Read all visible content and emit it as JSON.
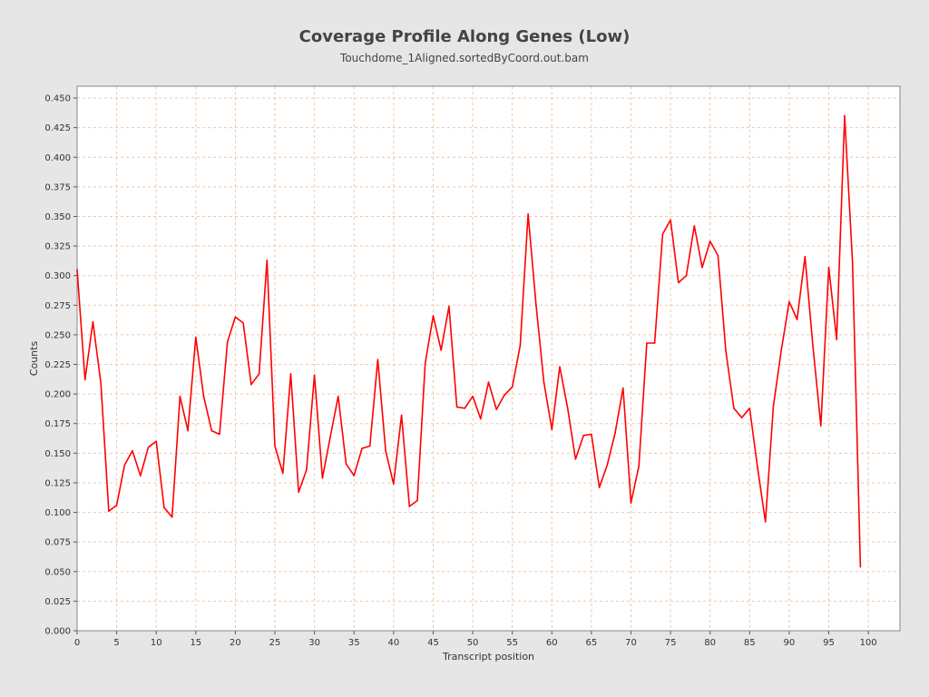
{
  "colors": {
    "background": "#e6e6e6",
    "plot_background": "#ffffff",
    "gridline": "#f0c8a8",
    "series": "#ff0000"
  },
  "chart_data": {
    "type": "line",
    "title": "Coverage Profile Along Genes (Low)",
    "subtitle": "Touchdome_1Aligned.sortedByCoord.out.bam",
    "xlabel": "Transcript position",
    "ylabel": "Counts",
    "xlim": [
      0,
      104
    ],
    "ylim": [
      0,
      0.46
    ],
    "grid": true,
    "legend": "none",
    "x_ticks": [
      "0",
      "5",
      "10",
      "15",
      "20",
      "25",
      "30",
      "35",
      "40",
      "45",
      "50",
      "55",
      "60",
      "65",
      "70",
      "75",
      "80",
      "85",
      "90",
      "95",
      "100"
    ],
    "y_ticks": [
      "0.000",
      "0.025",
      "0.050",
      "0.075",
      "0.100",
      "0.125",
      "0.150",
      "0.175",
      "0.200",
      "0.225",
      "0.250",
      "0.275",
      "0.300",
      "0.325",
      "0.350",
      "0.375",
      "0.400",
      "0.425",
      "0.450"
    ],
    "series": [
      {
        "x": [
          0,
          1,
          2,
          3,
          4,
          5,
          6,
          7,
          8,
          9,
          10,
          11,
          12,
          13,
          14,
          15,
          16,
          17,
          18,
          19,
          20,
          21,
          22,
          23,
          24,
          25,
          26,
          27,
          28,
          29,
          30,
          31,
          32,
          33,
          34,
          35,
          36,
          37,
          38,
          39,
          40,
          41,
          42,
          43,
          44,
          45,
          46,
          47,
          48,
          49,
          50,
          51,
          52,
          53,
          54,
          55,
          56,
          57,
          58,
          59,
          60,
          61,
          62,
          63,
          64,
          65,
          66,
          67,
          68,
          69,
          70,
          71,
          72,
          73,
          74,
          75,
          76,
          77,
          78,
          79,
          80,
          81,
          82,
          83,
          84,
          85,
          86,
          87,
          88,
          89,
          90,
          91,
          92,
          93,
          94,
          95,
          96,
          97,
          98,
          99
        ],
        "values": [
          0.305,
          0.212,
          0.261,
          0.209,
          0.101,
          0.106,
          0.14,
          0.152,
          0.131,
          0.155,
          0.16,
          0.104,
          0.096,
          0.198,
          0.169,
          0.248,
          0.198,
          0.169,
          0.166,
          0.244,
          0.265,
          0.26,
          0.208,
          0.217,
          0.313,
          0.156,
          0.133,
          0.217,
          0.117,
          0.136,
          0.216,
          0.129,
          0.164,
          0.198,
          0.141,
          0.131,
          0.154,
          0.156,
          0.229,
          0.152,
          0.124,
          0.182,
          0.105,
          0.11,
          0.226,
          0.266,
          0.237,
          0.274,
          0.189,
          0.188,
          0.198,
          0.179,
          0.21,
          0.187,
          0.199,
          0.206,
          0.241,
          0.352,
          0.276,
          0.21,
          0.17,
          0.223,
          0.188,
          0.145,
          0.165,
          0.166,
          0.121,
          0.14,
          0.167,
          0.205,
          0.108,
          0.139,
          0.243,
          0.243,
          0.335,
          0.347,
          0.294,
          0.3,
          0.342,
          0.307,
          0.329,
          0.317,
          0.236,
          0.188,
          0.18,
          0.188,
          0.138,
          0.092,
          0.19,
          0.237,
          0.278,
          0.263,
          0.316,
          0.24,
          0.173,
          0.307,
          0.246,
          0.435,
          0.311,
          0.054
        ]
      }
    ]
  }
}
